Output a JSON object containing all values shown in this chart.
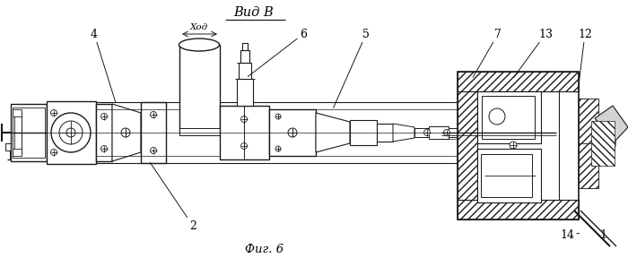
{
  "title_view": "Вид В",
  "title_fig": "Фиг. 6",
  "label_xod": "Ход",
  "bg_color": "#ffffff",
  "line_color": "#1a1a1a",
  "figsize": [
    7.0,
    2.88
  ],
  "dpi": 100
}
